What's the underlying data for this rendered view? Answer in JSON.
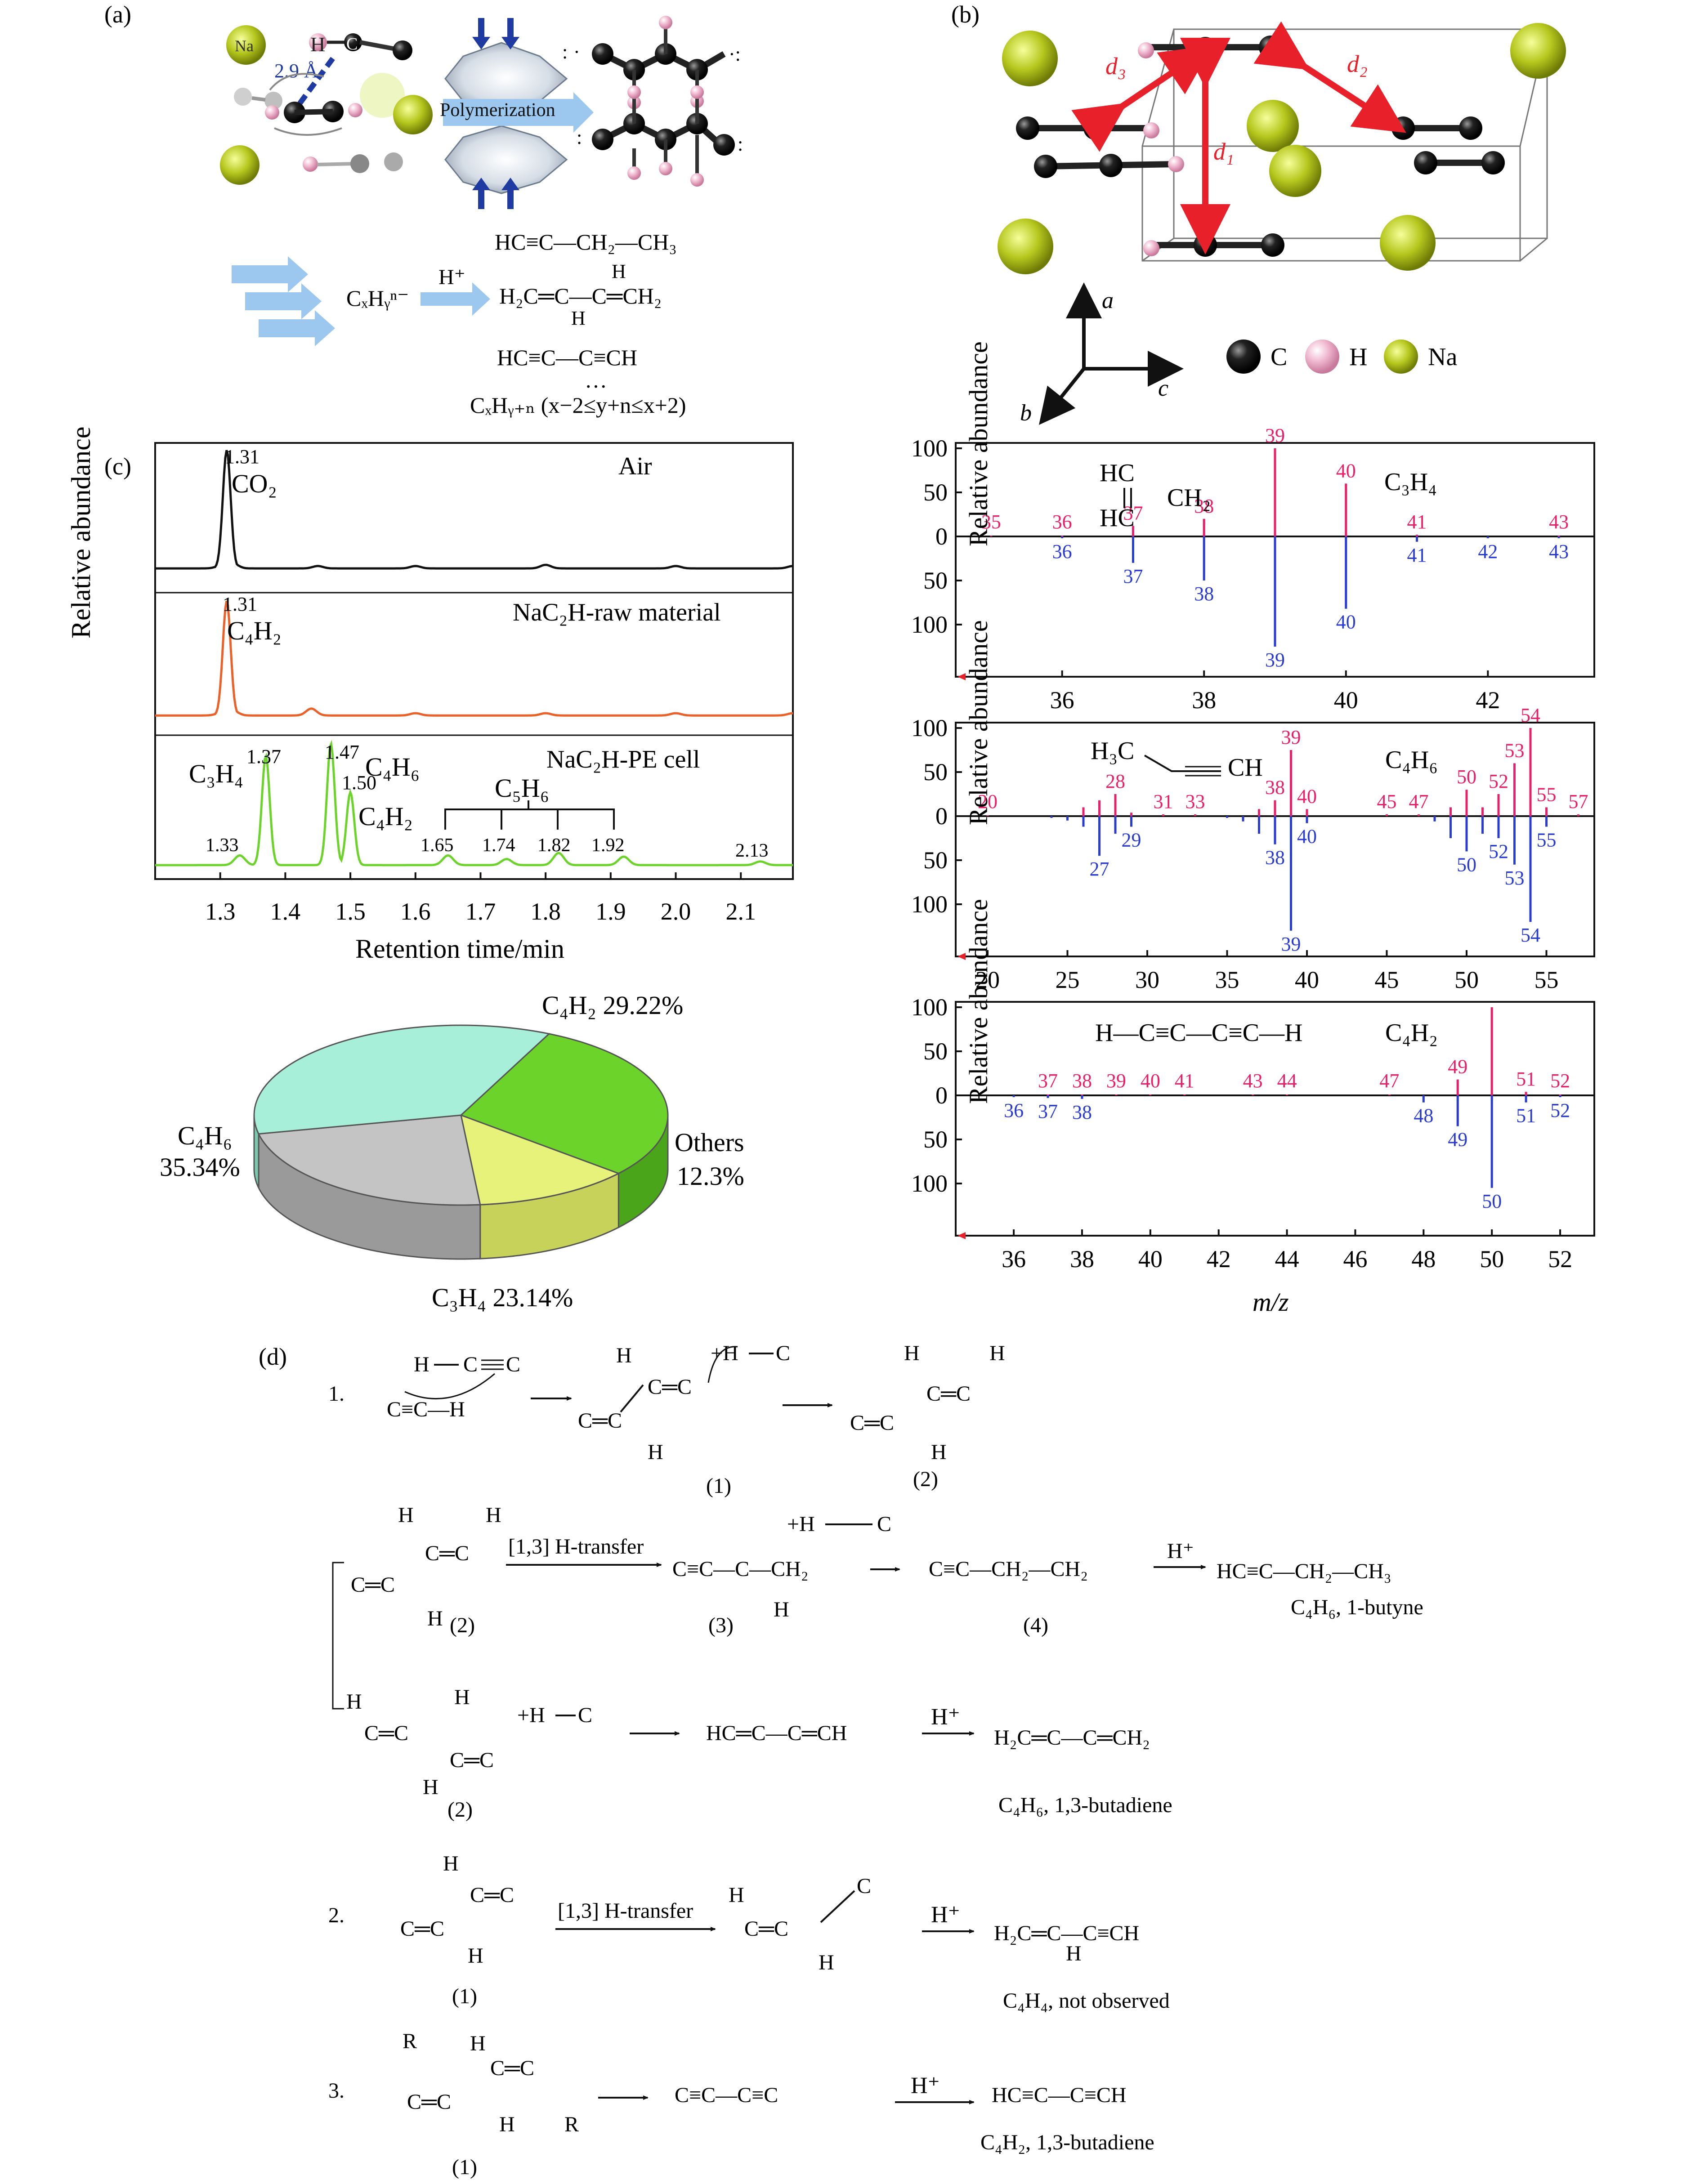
{
  "panels": {
    "a": "(a)",
    "b": "(b)",
    "c": "(c)",
    "d": "(d)"
  },
  "panel_a": {
    "na_label": "Na",
    "h_label": "H",
    "c_label": "C",
    "distance": "2.9 Å",
    "polymerization": "Polymerization",
    "ion": "CₓHᵧⁿ⁻",
    "proton": "H⁺",
    "products": [
      "HC≡C—CH₂—CH₃",
      "H₂C═C—C═CH₂",
      "HC≡C—C≡CH"
    ],
    "diene_top_h": "H",
    "diene_bottom_h": "H",
    "dots": "…",
    "general_formula": "CₓHᵧ₊ₙ (x−2≤y+n≤x+2)"
  },
  "panel_b": {
    "distances": [
      "d₃",
      "d₂",
      "d₁"
    ],
    "axes": [
      "a",
      "b",
      "c"
    ],
    "legend": [
      "C",
      "H",
      "Na"
    ],
    "colors": {
      "C": "#111111",
      "H": "#e7a9c4",
      "Na": "#b6c71e",
      "arrow": "#e8202a"
    }
  },
  "chromatograms": {
    "xlabel": "Retention time/min",
    "ylabel": "Relative abundance",
    "xticks": [
      "1.3",
      "1.4",
      "1.5",
      "1.6",
      "1.7",
      "1.8",
      "1.9",
      "2.0",
      "2.1"
    ],
    "traces": [
      {
        "title": "Air",
        "color": "#111111",
        "peak_labels": [
          {
            "time": "1.31",
            "species": "CO₂"
          }
        ]
      },
      {
        "title": "NaC₂H-raw material",
        "color": "#e8622a",
        "peak_labels": [
          {
            "time": "1.31",
            "species": "C₄H₂"
          }
        ]
      },
      {
        "title": "NaC₂H-PE cell",
        "color": "#6cd32a",
        "peak_labels": [
          {
            "time": "1.33",
            "species": ""
          },
          {
            "time": "1.37",
            "species": "C₃H₄"
          },
          {
            "time": "1.47",
            "species": "C₄H₆"
          },
          {
            "time": "1.50",
            "species": "C₄H₂"
          },
          {
            "time": "1.65",
            "species": ""
          },
          {
            "time": "1.74",
            "species": ""
          },
          {
            "time": "1.82",
            "species": ""
          },
          {
            "time": "1.92",
            "species": ""
          },
          {
            "time": "2.13",
            "species": ""
          }
        ],
        "group_label": "C₅H₆"
      }
    ]
  },
  "pie": {
    "labels": [
      {
        "name": "C₄H₂ 29.22%"
      },
      {
        "name": "Others",
        "pct": "12.3%"
      },
      {
        "name": "C₃H₄ 23.14%"
      },
      {
        "name": "C₄H₆",
        "pct": "35.34%"
      }
    ],
    "colors": {
      "C4H2": "#6cd32a",
      "Others": "#e6f27a",
      "C3H4": "#c4c4c4",
      "C4H6": "#a8efd9"
    }
  },
  "chart_data": [
    {
      "type": "line",
      "title": "Air",
      "xlabel": "Retention time/min",
      "ylabel": "Relative abundance",
      "x": [
        1.3,
        1.31,
        1.32,
        1.45,
        1.6,
        1.8,
        2.0,
        2.18
      ],
      "y": [
        0.02,
        1.0,
        0.04,
        0.02,
        0.02,
        0.03,
        0.02,
        0.02
      ],
      "xlim": [
        1.2,
        2.18
      ]
    },
    {
      "type": "line",
      "title": "NaC₂H-raw material",
      "xlabel": "Retention time/min",
      "ylabel": "Relative abundance",
      "x": [
        1.3,
        1.31,
        1.32,
        1.44,
        1.6,
        1.8,
        2.0,
        2.18
      ],
      "y": [
        0.02,
        1.0,
        0.04,
        0.06,
        0.02,
        0.02,
        0.02,
        0.02
      ],
      "xlim": [
        1.2,
        2.18
      ]
    },
    {
      "type": "line",
      "title": "NaC₂H-PE cell",
      "xlabel": "Retention time/min",
      "ylabel": "Relative abundance",
      "x": [
        1.33,
        1.37,
        1.47,
        1.5,
        1.65,
        1.74,
        1.82,
        1.92,
        2.13
      ],
      "y": [
        0.08,
        0.9,
        1.0,
        0.6,
        0.08,
        0.05,
        0.1,
        0.07,
        0.03
      ],
      "xlim": [
        1.2,
        2.18
      ]
    },
    {
      "type": "pie",
      "categories": [
        "C₄H₂",
        "Others",
        "C₃H₄",
        "C₄H₆"
      ],
      "values": [
        29.22,
        12.3,
        23.14,
        35.34
      ]
    },
    {
      "type": "bar",
      "title": "C₃H₄",
      "xlabel": "m/z",
      "ylabel": "Relative abundance",
      "xlim": [
        34.5,
        43.5
      ],
      "ylim": [
        -120,
        120
      ],
      "xticks": [
        36,
        38,
        40,
        42
      ],
      "series": [
        {
          "color": "#e8206a",
          "x": [
            35,
            36,
            37,
            38,
            39,
            40,
            41,
            43
          ],
          "values": [
            1,
            1,
            12,
            20,
            100,
            60,
            2,
            1
          ]
        },
        {
          "color": "#2a3cd0",
          "x": [
            36,
            37,
            38,
            39,
            40,
            41,
            42,
            43
          ],
          "values": [
            -2,
            -30,
            -50,
            -125,
            -82,
            -6,
            -2,
            -2
          ]
        }
      ],
      "structure": [
        "HC",
        "CH₂",
        "HC"
      ]
    },
    {
      "type": "bar",
      "title": "C₄H₆",
      "xlabel": "m/z",
      "ylabel": "Relative abundance",
      "xlim": [
        18,
        58
      ],
      "ylim": [
        -120,
        120
      ],
      "xticks": [
        20,
        25,
        30,
        35,
        40,
        45,
        50,
        55
      ],
      "series": [
        {
          "color": "#e8206a",
          "x": [
            20,
            26,
            27,
            28,
            29,
            31,
            33,
            37,
            38,
            39,
            40,
            45,
            47,
            49,
            50,
            51,
            52,
            53,
            54,
            55,
            57
          ],
          "values": [
            1,
            10,
            18,
            25,
            4,
            2,
            2,
            8,
            18,
            75,
            8,
            2,
            2,
            10,
            30,
            10,
            25,
            60,
            100,
            10,
            2
          ]
        },
        {
          "color": "#2a3cd0",
          "x": [
            24,
            25,
            26,
            27,
            28,
            29,
            35,
            36,
            37,
            38,
            39,
            40,
            48,
            49,
            50,
            51,
            52,
            53,
            54,
            55
          ],
          "values": [
            -2,
            -5,
            -12,
            -45,
            -20,
            -12,
            -2,
            -6,
            -20,
            -32,
            -130,
            -8,
            -6,
            -25,
            -40,
            -20,
            -25,
            -55,
            -120,
            -12
          ]
        }
      ],
      "structure": [
        "H₃C",
        "CH"
      ]
    },
    {
      "type": "bar",
      "title": "C₄H₂",
      "xlabel": "m/z",
      "ylabel": "Relative abundance",
      "xlim": [
        34.3,
        53
      ],
      "ylim": [
        -120,
        120
      ],
      "xticks": [
        36,
        38,
        40,
        42,
        44,
        46,
        48,
        50,
        52
      ],
      "series": [
        {
          "color": "#e8206a",
          "x": [
            37,
            38,
            39,
            40,
            41,
            43,
            44,
            47,
            49,
            50,
            51,
            52
          ],
          "values": [
            1,
            1,
            1,
            1,
            1,
            1,
            1,
            1,
            18,
            100,
            4,
            1
          ]
        },
        {
          "color": "#2a3cd0",
          "x": [
            36,
            37,
            38,
            48,
            49,
            50,
            51,
            52
          ],
          "values": [
            -2,
            -3,
            -4,
            -8,
            -35,
            -105,
            -8,
            -2
          ]
        }
      ],
      "structure": "H—C≡C—C≡C—H"
    }
  ],
  "mass_spectra": {
    "ylabel": "Relative abundance",
    "xlabel": "m/z",
    "yticks": [
      "100",
      "50",
      "0",
      "50",
      "100"
    ],
    "spectra": [
      {
        "title": "C₃H₄",
        "up_labels": [
          "35",
          "36",
          "37",
          "38",
          "39",
          "40",
          "41",
          "43"
        ],
        "down_labels": [
          "36",
          "37",
          "38",
          "39",
          "40",
          "41",
          "42",
          "43"
        ],
        "xticks": [
          "36",
          "38",
          "40",
          "42"
        ]
      },
      {
        "title": "C₄H₆",
        "up_labels": [
          "20",
          "28",
          "31",
          "33",
          "38",
          "39",
          "40",
          "45",
          "47",
          "50",
          "52",
          "53",
          "54",
          "55",
          "57"
        ],
        "down_labels": [
          "27",
          "29",
          "38",
          "39",
          "40",
          "50",
          "52",
          "53",
          "54",
          "55"
        ],
        "xticks": [
          "20",
          "25",
          "30",
          "35",
          "40",
          "45",
          "50",
          "55"
        ]
      },
      {
        "title": "C₄H₂",
        "up_labels": [
          "37",
          "38",
          "39",
          "40",
          "41",
          "43",
          "44",
          "47",
          "49",
          "51",
          "52"
        ],
        "down_labels": [
          "36",
          "37",
          "38",
          "48",
          "49",
          "50",
          "51",
          "52"
        ],
        "xticks": [
          "36",
          "38",
          "40",
          "42",
          "44",
          "46",
          "48",
          "50",
          "52"
        ]
      }
    ]
  },
  "mechanism": {
    "steps": [
      "1.",
      "2.",
      "3."
    ],
    "h_transfer": "[1,3] H-transfer",
    "proton": "H⁺",
    "hplus_label": "+H",
    "carbon": "C",
    "hydrogen": "H",
    "r_group": "R",
    "intermediates": [
      "(1)",
      "(2)",
      "(3)",
      "(4)"
    ],
    "row1_products": [
      "C≡C—H",
      "C═C",
      "C═C"
    ],
    "butyne_chain": "C≡C—C—CH₂",
    "butyne_anion": "C≡C—CH₂—CH₂",
    "butyne_product": "HC≡C—CH₂—CH₃",
    "butyne_name": "C₄H₆, 1-butyne",
    "butadiene_anion": "HC═C—C═CH",
    "butadiene_product": "H₂C═C—C═CH₂",
    "butadiene_name": "C₄H₆, 1,3-butadiene",
    "c4h4_product": "H₂C═C—C≡CH",
    "c4h4_name": "C₄H₄, not observed",
    "diyne_anion": "C≡C—C≡C",
    "diyne_product": "HC≡C—C≡CH",
    "diyne_name": "C₄H₂, 1,3-butadiene"
  }
}
